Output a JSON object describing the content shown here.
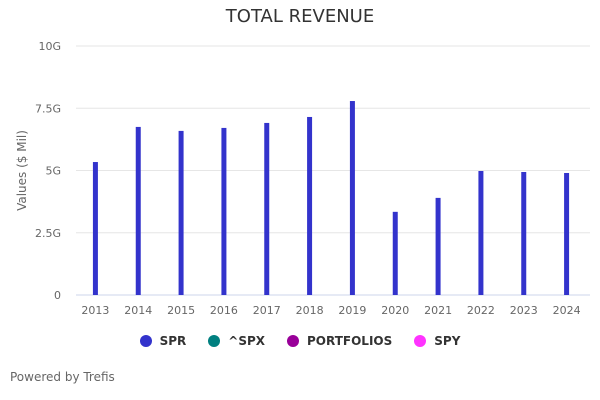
{
  "chart_data": {
    "type": "bar",
    "title": "TOTAL REVENUE",
    "xlabel": "",
    "ylabel": "Values ($ Mil)",
    "ylim": [
      0,
      10
    ],
    "yticks": [
      0,
      2.5,
      5,
      7.5,
      10
    ],
    "ytick_labels": [
      "0",
      "2.5G",
      "5G",
      "7.5G",
      "10G"
    ],
    "grid": true,
    "categories": [
      "2013",
      "2014",
      "2015",
      "2016",
      "2017",
      "2018",
      "2019",
      "2020",
      "2021",
      "2022",
      "2023",
      "2024"
    ],
    "series": [
      {
        "name": "SPR",
        "color": "#3333cc",
        "values": [
          5.34,
          6.75,
          6.59,
          6.71,
          6.91,
          7.15,
          7.79,
          3.34,
          3.9,
          4.98,
          4.94,
          4.9
        ]
      }
    ],
    "value_unit": "G",
    "legend_position": "bottom",
    "legend": [
      {
        "label": "SPR",
        "color": "#3333cc"
      },
      {
        "label": "^SPX",
        "color": "#008080"
      },
      {
        "label": "PORTFOLIOS",
        "color": "#990099"
      },
      {
        "label": "SPY",
        "color": "#ff33ff"
      }
    ]
  },
  "footer": "Powered by Trefis"
}
